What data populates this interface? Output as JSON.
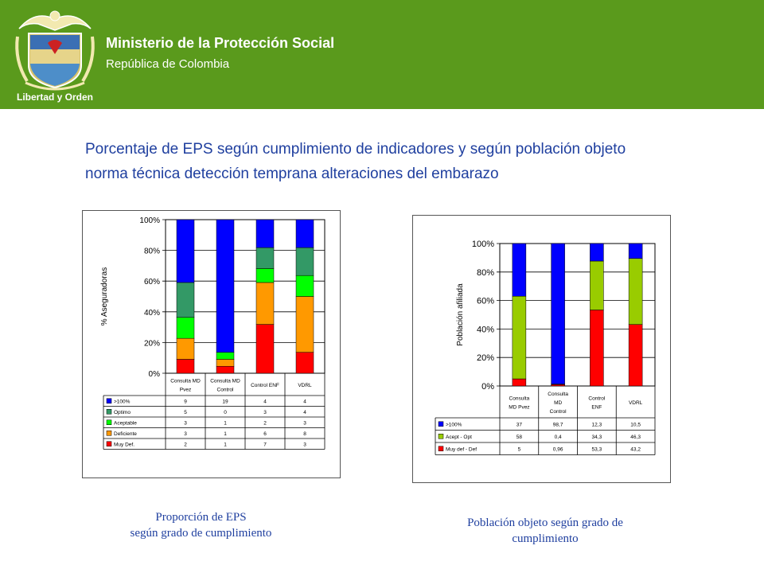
{
  "header": {
    "title": "Ministerio de la Protección Social",
    "subtitle": "República de Colombia",
    "logo_motto": "Libertad y Orden"
  },
  "slide": {
    "title_line1": "Porcentaje de EPS según cumplimiento de indicadores y según población objeto",
    "title_line2": "norma técnica detección temprana alteraciones del embarazo"
  },
  "captions": {
    "left_line1": "Proporción de EPS",
    "left_line2": "según grado de cumplimiento",
    "right_line1": "Población objeto según grado de",
    "right_line2": "cumplimiento"
  },
  "chart_data": [
    {
      "type": "bar",
      "stacking": "percent",
      "title": "",
      "ylabel": "% Aseguradoras",
      "ylim": [
        0,
        100
      ],
      "y_ticks": [
        "0%",
        "20%",
        "40%",
        "60%",
        "80%",
        "100%"
      ],
      "categories": [
        [
          "Consulta MD",
          "Pvez"
        ],
        [
          "Consulta MD",
          "Control"
        ],
        [
          "Control ENF"
        ],
        [
          "VDRL"
        ]
      ],
      "legend_placement": "data-table",
      "series": [
        {
          "name": "Muy Def.",
          "color": "#ff0000",
          "values": [
            2,
            1,
            7,
            3
          ],
          "labels": [
            "2",
            "1",
            "7",
            "3"
          ]
        },
        {
          "name": "Deficiente",
          "color": "#ff9900",
          "values": [
            3,
            1,
            6,
            8
          ],
          "labels": [
            "3",
            "1",
            "6",
            "8"
          ]
        },
        {
          "name": "Aceptable",
          "color": "#00ff00",
          "values": [
            3,
            1,
            2,
            3
          ],
          "labels": [
            "3",
            "1",
            "2",
            "3"
          ]
        },
        {
          "name": "Optimo",
          "color": "#339966",
          "values": [
            5,
            0,
            3,
            4
          ],
          "labels": [
            "5",
            "0",
            "3",
            "4"
          ]
        },
        {
          "name": ">100%",
          "color": "#0000ff",
          "values": [
            9,
            19,
            4,
            4
          ],
          "labels": [
            "9",
            "19",
            "4",
            "4"
          ]
        }
      ]
    },
    {
      "type": "bar",
      "stacking": "percent",
      "title": "",
      "ylabel": "Población afiliada",
      "ylim": [
        0,
        100
      ],
      "y_ticks": [
        "0%",
        "20%",
        "40%",
        "60%",
        "80%",
        "100%"
      ],
      "categories": [
        [
          "Consulta",
          "MD Pvez"
        ],
        [
          "Consulta",
          "MD",
          "Control"
        ],
        [
          "Control",
          "ENF"
        ],
        [
          "VDRL"
        ]
      ],
      "legend_placement": "data-table",
      "series": [
        {
          "name": "Muy def - Def",
          "color": "#ff0000",
          "values": [
            5,
            0.96,
            53.3,
            43.2
          ],
          "labels": [
            "5",
            "0,96",
            "53,3",
            "43,2"
          ]
        },
        {
          "name": "Acept - Opt",
          "color": "#99cc00",
          "values": [
            58,
            0.4,
            34.3,
            46.3
          ],
          "labels": [
            "58",
            "0,4",
            "34,3",
            "46,3"
          ]
        },
        {
          "name": ">100%",
          "color": "#0000ff",
          "values": [
            37,
            98.7,
            12.3,
            10.5
          ],
          "labels": [
            "37",
            "98,7",
            "12,3",
            "10,5"
          ]
        }
      ]
    }
  ]
}
